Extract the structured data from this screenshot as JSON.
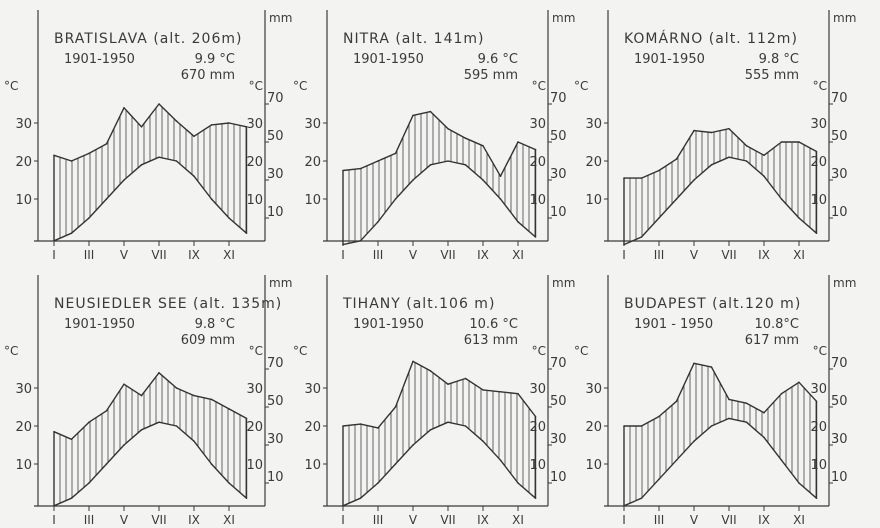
{
  "labels": {
    "temp_unit": "°C",
    "precip_unit": "mm",
    "months": [
      "I",
      "III",
      "V",
      "VII",
      "IX",
      "XI"
    ]
  },
  "chart_data": [
    {
      "type": "line",
      "title": "BRATISLAVA (alt. 206m)",
      "period": "1901-1950",
      "mean_temp": "9.9 °C",
      "annual_precip": "670 mm",
      "x": [
        "I",
        "II",
        "III",
        "IV",
        "V",
        "VI",
        "VII",
        "VIII",
        "IX",
        "X",
        "XI",
        "XII"
      ],
      "ylim_temp": [
        0,
        40
      ],
      "ylim_precip": [
        0,
        80
      ],
      "temp_ticks": [
        10,
        20,
        30
      ],
      "precip_ticks": [
        10,
        30,
        50,
        70
      ],
      "series": [
        {
          "name": "°C",
          "values": [
            -1,
            1,
            5,
            10,
            15,
            19,
            21,
            20,
            16,
            10,
            5,
            1
          ]
        },
        {
          "name": "mm",
          "values": [
            43,
            40,
            44,
            49,
            68,
            58,
            70,
            61,
            53,
            59,
            60,
            58
          ]
        }
      ]
    },
    {
      "type": "line",
      "title": "NITRA (alt. 141m)",
      "period": "1901-1950",
      "mean_temp": "9.6 °C",
      "annual_precip": "595 mm",
      "x": [
        "I",
        "II",
        "III",
        "IV",
        "V",
        "VI",
        "VII",
        "VIII",
        "IX",
        "X",
        "XI",
        "XII"
      ],
      "ylim_temp": [
        0,
        40
      ],
      "ylim_precip": [
        0,
        80
      ],
      "temp_ticks": [
        10,
        20,
        30
      ],
      "precip_ticks": [
        10,
        30,
        50,
        70
      ],
      "series": [
        {
          "name": "°C",
          "values": [
            -2,
            -1,
            4,
            10,
            15,
            19,
            20,
            19,
            15,
            10,
            4,
            0
          ]
        },
        {
          "name": "mm",
          "values": [
            35,
            36,
            40,
            44,
            64,
            66,
            57,
            52,
            48,
            32,
            50,
            46
          ]
        }
      ]
    },
    {
      "type": "line",
      "title": "KOMÁRNO (alt. 112m)",
      "period": "1901-1950",
      "mean_temp": "9.8 °C",
      "annual_precip": "555 mm",
      "x": [
        "I",
        "II",
        "III",
        "IV",
        "V",
        "VI",
        "VII",
        "VIII",
        "IX",
        "X",
        "XI",
        "XII"
      ],
      "ylim_temp": [
        0,
        40
      ],
      "ylim_precip": [
        0,
        80
      ],
      "temp_ticks": [
        10,
        20,
        30
      ],
      "precip_ticks": [
        10,
        30,
        50,
        70
      ],
      "series": [
        {
          "name": "°C",
          "values": [
            -2,
            0,
            5,
            10,
            15,
            19,
            21,
            20,
            16,
            10,
            5,
            1
          ]
        },
        {
          "name": "mm",
          "values": [
            31,
            31,
            35,
            41,
            56,
            55,
            57,
            48,
            43,
            50,
            50,
            45
          ]
        }
      ]
    },
    {
      "type": "line",
      "title": "NEUSIEDLER SEE (alt. 135m)",
      "period": "1901-1950",
      "mean_temp": "9.8 °C",
      "annual_precip": "609 mm",
      "x": [
        "I",
        "II",
        "III",
        "IV",
        "V",
        "VI",
        "VII",
        "VIII",
        "IX",
        "X",
        "XI",
        "XII"
      ],
      "ylim_temp": [
        0,
        40
      ],
      "ylim_precip": [
        0,
        80
      ],
      "temp_ticks": [
        10,
        20,
        30
      ],
      "precip_ticks": [
        10,
        30,
        50,
        70
      ],
      "series": [
        {
          "name": "°C",
          "values": [
            -1,
            1,
            5,
            10,
            15,
            19,
            21,
            20,
            16,
            10,
            5,
            1
          ]
        },
        {
          "name": "mm",
          "values": [
            37,
            33,
            42,
            48,
            62,
            56,
            68,
            60,
            56,
            54,
            49,
            44
          ]
        }
      ]
    },
    {
      "type": "line",
      "title": "TIHANY (alt.106 m)",
      "period": "1901-1950",
      "mean_temp": "10.6 °C",
      "annual_precip": "613 mm",
      "x": [
        "I",
        "II",
        "III",
        "IV",
        "V",
        "VI",
        "VII",
        "VIII",
        "IX",
        "X",
        "XI",
        "XII"
      ],
      "ylim_temp": [
        0,
        40
      ],
      "ylim_precip": [
        0,
        80
      ],
      "temp_ticks": [
        10,
        20,
        30
      ],
      "precip_ticks": [
        10,
        30,
        50,
        70
      ],
      "series": [
        {
          "name": "°C",
          "values": [
            -1,
            1,
            5,
            10,
            15,
            19,
            21,
            20,
            16,
            11,
            5,
            1
          ]
        },
        {
          "name": "mm",
          "values": [
            40,
            41,
            39,
            50,
            74,
            69,
            62,
            65,
            59,
            58,
            57,
            45
          ]
        }
      ]
    },
    {
      "type": "line",
      "title": "BUDAPEST (alt.120 m)",
      "period": "1901 - 1950",
      "mean_temp": "10.8°C",
      "annual_precip": "617 mm",
      "x": [
        "I",
        "II",
        "III",
        "IV",
        "V",
        "VI",
        "VII",
        "VIII",
        "IX",
        "X",
        "XI",
        "XII"
      ],
      "ylim_temp": [
        0,
        40
      ],
      "ylim_precip": [
        0,
        80
      ],
      "temp_ticks": [
        10,
        20,
        30
      ],
      "precip_ticks": [
        10,
        30,
        50,
        70
      ],
      "series": [
        {
          "name": "°C",
          "values": [
            -1,
            1,
            6,
            11,
            16,
            20,
            22,
            21,
            17,
            11,
            5,
            1
          ]
        },
        {
          "name": "mm",
          "values": [
            40,
            40,
            45,
            53,
            73,
            71,
            54,
            52,
            47,
            57,
            63,
            53
          ]
        }
      ]
    }
  ]
}
